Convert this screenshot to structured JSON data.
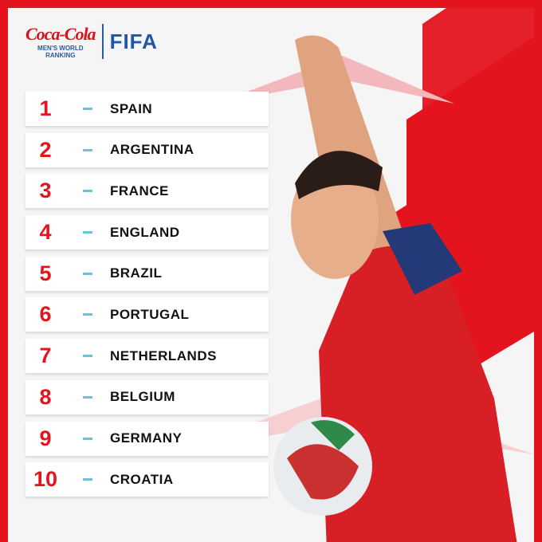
{
  "header": {
    "sponsor": "Coca-Cola",
    "subtitle_line1": "MEN'S WORLD",
    "subtitle_line2": "RANKING",
    "brand": "FIFA"
  },
  "rankings": [
    {
      "rank": "1",
      "country": "SPAIN"
    },
    {
      "rank": "2",
      "country": "ARGENTINA"
    },
    {
      "rank": "3",
      "country": "FRANCE"
    },
    {
      "rank": "4",
      "country": "ENGLAND"
    },
    {
      "rank": "5",
      "country": "BRAZIL"
    },
    {
      "rank": "6",
      "country": "PORTUGAL"
    },
    {
      "rank": "7",
      "country": "NETHERLANDS"
    },
    {
      "rank": "8",
      "country": "BELGIUM"
    },
    {
      "rank": "9",
      "country": "GERMANY"
    },
    {
      "rank": "10",
      "country": "CROATIA"
    }
  ],
  "colors": {
    "accent": "#e4141f",
    "dash": "#6cc4dc",
    "fifa_blue": "#1e57a8"
  }
}
